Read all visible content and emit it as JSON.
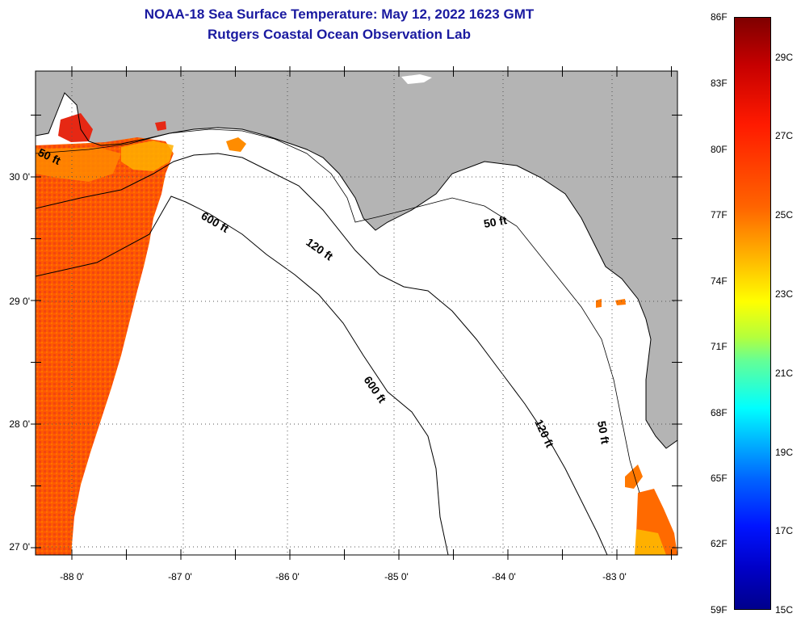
{
  "header": {
    "title": "NOAA-18 Sea Surface Temperature:  May 12, 2022 1623 GMT",
    "subtitle": "Rutgers Coastal Ocean Observation Lab"
  },
  "map": {
    "lon_labels": [
      "-88 0'",
      "-87 0'",
      "-86 0'",
      "-85 0'",
      "-84 0'",
      "-83 0'"
    ],
    "lat_labels": [
      "30 0'",
      "29 0'",
      "28 0'",
      "27 0'"
    ],
    "contours": {
      "c600_a": "600 ft",
      "c600_b": "600 ft",
      "c120_a": "120 ft",
      "c120_b": "120 ft",
      "c50_a": "50 ft",
      "c50_b": "50 ft",
      "c50_c": "50 ft"
    },
    "colors": {
      "land": "#b4b4b4",
      "background": "#ffffff",
      "sst_warm": "#ff5a00",
      "sst_hot": "#e62814",
      "sst_mild": "#ffa000",
      "sst_cool": "#ffd200"
    }
  },
  "colorbar": {
    "fahrenheit": [
      "86F",
      "83F",
      "80F",
      "77F",
      "74F",
      "71F",
      "68F",
      "65F",
      "62F",
      "59F"
    ],
    "celsius": [
      "29C",
      "27C",
      "25C",
      "23C",
      "21C",
      "19C",
      "17C",
      "15C"
    ]
  }
}
